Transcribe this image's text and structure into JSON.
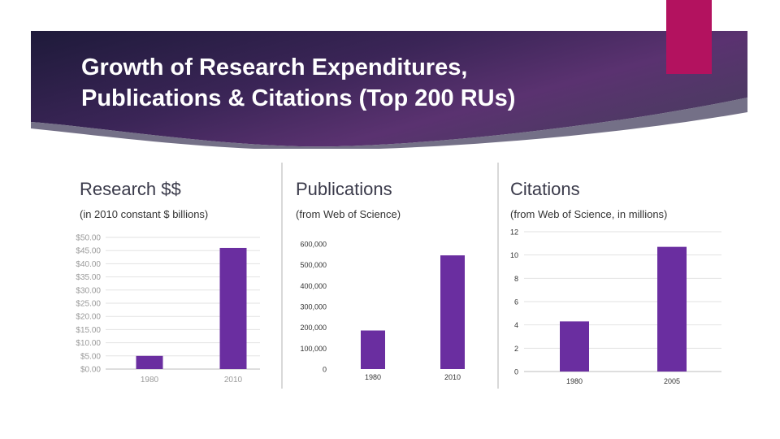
{
  "slide": {
    "title_line1": "Growth of Research Expenditures,",
    "title_line2": "Publications & Citations (Top 200 RUs)",
    "colors": {
      "banner_dark": "#2a1f4d",
      "banner_light": "#6b3a7a",
      "accent": "#b3125f",
      "bar": "#6a2ea0"
    }
  },
  "columns": [
    {
      "heading": "Research $$",
      "subheading": "(in 2010 constant $ billions)"
    },
    {
      "heading": "Publications",
      "subheading": "(from Web of Science)"
    },
    {
      "heading": "Citations",
      "subheading": "(from Web of Science, in millions)"
    }
  ],
  "chart_data": [
    {
      "type": "bar",
      "title": "Research $$",
      "categories": [
        "1980",
        "2010"
      ],
      "values": [
        5,
        46
      ],
      "ylim": [
        0,
        50
      ],
      "yticks": [
        "$0.00",
        "$5.00",
        "$10.00",
        "$15.00",
        "$20.00",
        "$25.00",
        "$30.00",
        "$35.00",
        "$40.00",
        "$45.00",
        "$50.00"
      ],
      "grid": true
    },
    {
      "type": "bar",
      "title": "Publications",
      "categories": [
        "1980",
        "2010"
      ],
      "values": [
        185000,
        545000
      ],
      "ylim": [
        0,
        600000
      ],
      "yticks": [
        "0",
        "100,000",
        "200,000",
        "300,000",
        "400,000",
        "500,000",
        "600,000"
      ],
      "grid": false
    },
    {
      "type": "bar",
      "title": "Citations",
      "categories": [
        "1980",
        "2005"
      ],
      "values": [
        4.3,
        10.7
      ],
      "ylim": [
        0,
        12
      ],
      "yticks": [
        "0",
        "2",
        "4",
        "6",
        "8",
        "10",
        "12"
      ],
      "grid": true
    }
  ]
}
